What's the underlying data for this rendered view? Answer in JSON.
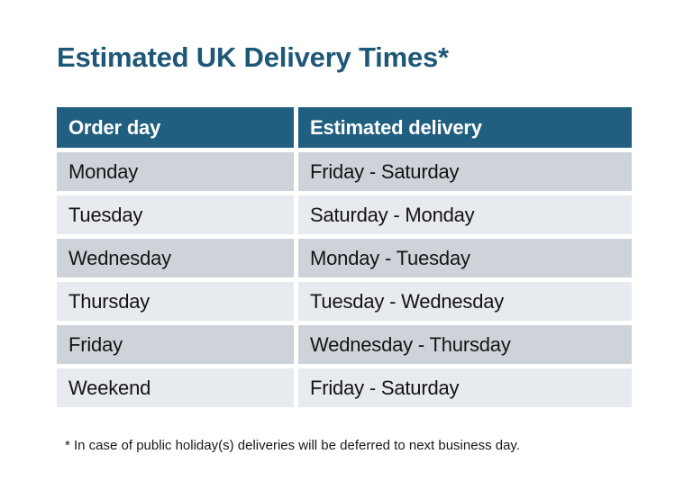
{
  "title": "Estimated UK Delivery Times*",
  "table": {
    "columns": [
      "Order day",
      "Estimated delivery"
    ],
    "rows": [
      [
        "Monday",
        "Friday - Saturday"
      ],
      [
        "Tuesday",
        "Saturday - Monday"
      ],
      [
        "Wednesday",
        "Monday - Tuesday"
      ],
      [
        "Thursday",
        "Tuesday - Wednesday"
      ],
      [
        "Friday",
        "Wednesday - Thursday"
      ],
      [
        "Weekend",
        "Friday - Saturday"
      ]
    ]
  },
  "footnote": "* In case of public holiday(s) deliveries will be deferred to next business day.",
  "colors": {
    "title_text": "#1d5877",
    "header_bg": "#215f80",
    "header_text": "#ffffff",
    "row_odd_bg": "#ced3da",
    "row_even_bg": "#e7eaee",
    "cell_text": "#141414",
    "page_bg": "#ffffff"
  }
}
